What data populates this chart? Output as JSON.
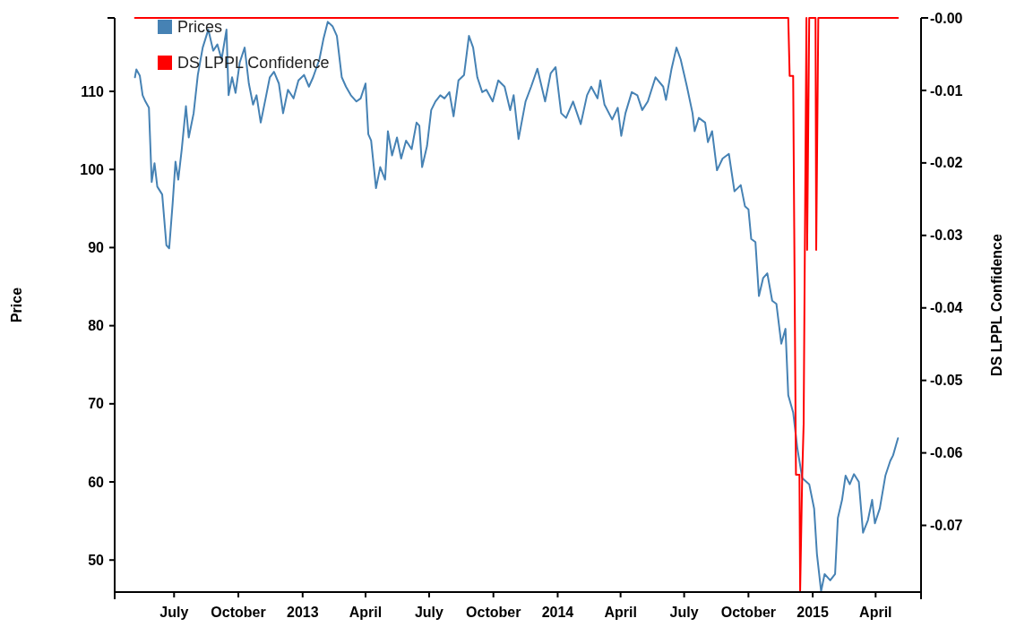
{
  "chart_data": {
    "type": "line",
    "xlabel": null,
    "ylabel": "Price",
    "y2label": "DS LPPL Confidence",
    "xlim": [
      "2012-04-07",
      "2015-06-05"
    ],
    "xticks": [
      {
        "value": "2012-07-01",
        "label": "July"
      },
      {
        "value": "2012-10-01",
        "label": "October"
      },
      {
        "value": "2013-01-01",
        "label": "2013"
      },
      {
        "value": "2013-04-01",
        "label": "April"
      },
      {
        "value": "2013-07-01",
        "label": "July"
      },
      {
        "value": "2013-10-01",
        "label": "October"
      },
      {
        "value": "2014-01-01",
        "label": "2014"
      },
      {
        "value": "2014-04-01",
        "label": "April"
      },
      {
        "value": "2014-07-01",
        "label": "July"
      },
      {
        "value": "2014-10-01",
        "label": "October"
      },
      {
        "value": "2015-01-01",
        "label": "2015"
      },
      {
        "value": "2015-04-01",
        "label": "April"
      }
    ],
    "ylim": [
      45.9,
      119.4
    ],
    "yticks": [
      50,
      60,
      70,
      80,
      90,
      100,
      110
    ],
    "y2lim": [
      -0.0792,
      0
    ],
    "y2ticks": [
      {
        "value": 0,
        "label": "-0.00"
      },
      -0.01,
      -0.02,
      -0.03,
      -0.04,
      -0.05,
      -0.06,
      -0.07
    ],
    "legend": "top left",
    "grid": false,
    "marker": "none",
    "line_style": "solid",
    "series": [
      {
        "name": "Prices",
        "color": "#4682b4",
        "x": [
          "2012-05-06",
          "2012-05-08",
          "2012-05-13",
          "2012-05-17",
          "2012-05-21",
          "2012-05-26",
          "2012-05-30",
          "2012-06-03",
          "2012-06-07",
          "2012-06-14",
          "2012-06-20",
          "2012-06-24",
          "2012-06-29",
          "2012-07-03",
          "2012-07-07",
          "2012-07-12",
          "2012-07-18",
          "2012-07-22",
          "2012-07-29",
          "2012-08-04",
          "2012-08-11",
          "2012-08-19",
          "2012-08-26",
          "2012-09-01",
          "2012-09-07",
          "2012-09-14",
          "2012-09-17",
          "2012-09-22",
          "2012-09-27",
          "2012-10-03",
          "2012-10-10",
          "2012-10-16",
          "2012-10-22",
          "2012-10-27",
          "2012-11-02",
          "2012-11-09",
          "2012-11-15",
          "2012-11-21",
          "2012-11-28",
          "2012-12-04",
          "2012-12-11",
          "2012-12-19",
          "2012-12-26",
          "2013-01-03",
          "2013-01-10",
          "2013-01-16",
          "2013-01-25",
          "2013-01-31",
          "2013-02-06",
          "2013-02-13",
          "2013-02-19",
          "2013-02-26",
          "2013-03-04",
          "2013-03-11",
          "2013-03-19",
          "2013-03-25",
          "2013-04-01",
          "2013-04-05",
          "2013-04-09",
          "2013-04-16",
          "2013-04-22",
          "2013-04-29",
          "2013-05-03",
          "2013-05-09",
          "2013-05-16",
          "2013-05-22",
          "2013-05-29",
          "2013-06-06",
          "2013-06-13",
          "2013-06-17",
          "2013-06-21",
          "2013-06-28",
          "2013-07-04",
          "2013-07-10",
          "2013-07-17",
          "2013-07-23",
          "2013-07-30",
          "2013-08-05",
          "2013-08-12",
          "2013-08-20",
          "2013-08-27",
          "2013-09-02",
          "2013-09-08",
          "2013-09-15",
          "2013-09-21",
          "2013-09-30",
          "2013-10-08",
          "2013-10-17",
          "2013-10-25",
          "2013-10-30",
          "2013-11-06",
          "2013-11-16",
          "2013-11-24",
          "2013-12-03",
          "2013-12-14",
          "2013-12-22",
          "2013-12-29",
          "2014-01-06",
          "2014-01-13",
          "2014-01-23",
          "2014-02-03",
          "2014-02-12",
          "2014-02-18",
          "2014-02-27",
          "2014-03-03",
          "2014-03-09",
          "2014-03-20",
          "2014-03-28",
          "2014-04-02",
          "2014-04-08",
          "2014-04-17",
          "2014-04-25",
          "2014-05-02",
          "2014-05-10",
          "2014-05-21",
          "2014-06-01",
          "2014-06-05",
          "2014-06-13",
          "2014-06-20",
          "2014-06-26",
          "2014-07-05",
          "2014-07-13",
          "2014-07-16",
          "2014-07-22",
          "2014-07-31",
          "2014-08-04",
          "2014-08-10",
          "2014-08-17",
          "2014-08-25",
          "2014-09-03",
          "2014-09-11",
          "2014-09-20",
          "2014-09-26",
          "2014-10-01",
          "2014-10-05",
          "2014-10-11",
          "2014-10-16",
          "2014-10-22",
          "2014-10-28",
          "2014-11-04",
          "2014-11-10",
          "2014-11-17",
          "2014-11-23",
          "2014-11-27",
          "2014-12-04",
          "2014-12-10",
          "2014-12-17",
          "2014-12-27",
          "2015-01-03",
          "2015-01-07",
          "2015-01-13",
          "2015-01-18",
          "2015-01-26",
          "2015-02-02",
          "2015-02-06",
          "2015-02-12",
          "2015-02-17",
          "2015-02-23",
          "2015-03-01",
          "2015-03-08",
          "2015-03-14",
          "2015-03-21",
          "2015-03-27",
          "2015-03-31",
          "2015-04-07",
          "2015-04-15",
          "2015-04-22",
          "2015-04-26",
          "2015-05-03"
        ],
        "values": [
          111.8,
          112.8,
          112.0,
          109.5,
          108.7,
          107.9,
          98.4,
          100.8,
          97.8,
          96.8,
          90.3,
          89.9,
          95.7,
          101.0,
          98.7,
          102.6,
          108.1,
          104.1,
          107.2,
          112.1,
          115.6,
          117.9,
          115.2,
          116.0,
          114.1,
          117.9,
          109.5,
          111.8,
          109.8,
          113.7,
          115.6,
          111.0,
          108.3,
          109.5,
          106.0,
          109.1,
          111.8,
          112.5,
          111.0,
          107.2,
          110.2,
          109.1,
          111.4,
          112.1,
          110.6,
          111.8,
          114.1,
          116.8,
          118.9,
          118.3,
          117.1,
          111.8,
          110.6,
          109.5,
          108.7,
          109.1,
          111.0,
          104.5,
          103.7,
          97.6,
          100.3,
          98.7,
          104.9,
          101.8,
          104.1,
          101.4,
          103.7,
          102.6,
          106.0,
          105.6,
          100.3,
          103.0,
          107.6,
          108.7,
          109.5,
          109.1,
          109.9,
          106.8,
          111.4,
          112.1,
          117.1,
          115.6,
          111.8,
          109.9,
          110.2,
          108.7,
          111.4,
          110.6,
          107.6,
          109.5,
          103.9,
          108.7,
          110.6,
          112.9,
          108.7,
          112.3,
          113.1,
          107.2,
          106.6,
          108.7,
          105.8,
          109.5,
          110.6,
          109.1,
          111.4,
          108.3,
          106.4,
          107.9,
          104.3,
          107.2,
          109.9,
          109.5,
          107.6,
          108.7,
          111.8,
          110.6,
          108.9,
          112.9,
          115.6,
          114.1,
          110.6,
          107.2,
          104.9,
          106.6,
          106.0,
          103.5,
          104.9,
          99.9,
          101.4,
          102.0,
          97.2,
          98.0,
          95.3,
          94.9,
          91.1,
          90.7,
          83.8,
          86.1,
          86.7,
          83.2,
          82.8,
          77.7,
          79.6,
          71.1,
          68.9,
          64.3,
          60.5,
          59.7,
          56.6,
          50.8,
          46.0,
          48.2,
          47.4,
          48.2,
          55.4,
          57.7,
          60.8,
          59.7,
          61.0,
          60.0,
          53.5,
          55.1,
          57.7,
          54.7,
          56.6,
          60.8,
          62.7,
          63.4,
          65.6
        ]
      },
      {
        "name": "DS LPPL Confidence",
        "color": "#ff0000",
        "axis": "y2",
        "x": [
          "2012-05-06",
          "2014-11-27",
          "2014-11-29",
          "2014-12-04",
          "2014-12-08",
          "2014-12-13",
          "2014-12-14",
          "2014-12-17",
          "2014-12-19",
          "2014-12-23",
          "2014-12-24",
          "2014-12-27",
          "2015-01-05",
          "2015-01-06",
          "2015-01-09",
          "2015-05-03"
        ],
        "values": [
          0,
          0,
          -0.008,
          -0.008,
          -0.063,
          -0.063,
          -0.079,
          -0.063,
          -0.056,
          0,
          -0.032,
          0,
          0,
          -0.032,
          0,
          0
        ]
      }
    ]
  }
}
